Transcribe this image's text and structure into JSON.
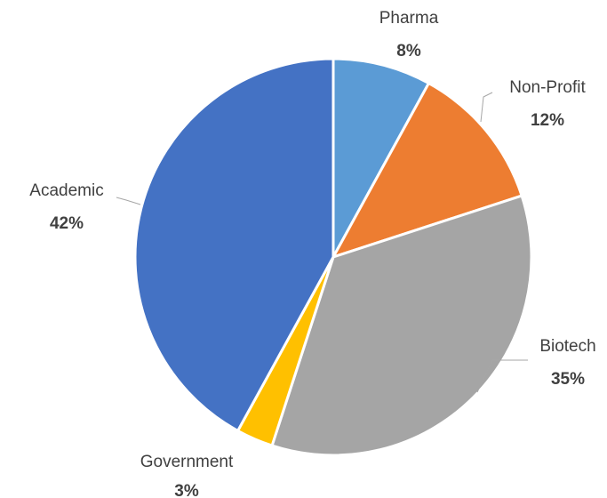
{
  "chart_data": {
    "type": "pie",
    "title": "",
    "start_angle_deg": 0,
    "direction": "clockwise",
    "slices": [
      {
        "label": "Pharma",
        "value": 8,
        "display": "8%",
        "color": "#5B9BD5"
      },
      {
        "label": "Non-Profit",
        "value": 12,
        "display": "12%",
        "color": "#ED7D31"
      },
      {
        "label": "Biotech",
        "value": 35,
        "display": "35%",
        "color": "#A5A5A5"
      },
      {
        "label": "Government",
        "value": 3,
        "display": "3%",
        "color": "#FFC000"
      },
      {
        "label": "Academic",
        "value": 42,
        "display": "42%",
        "color": "#4472C4"
      }
    ],
    "legend": false,
    "data_labels": "outside-with-leader-lines"
  }
}
